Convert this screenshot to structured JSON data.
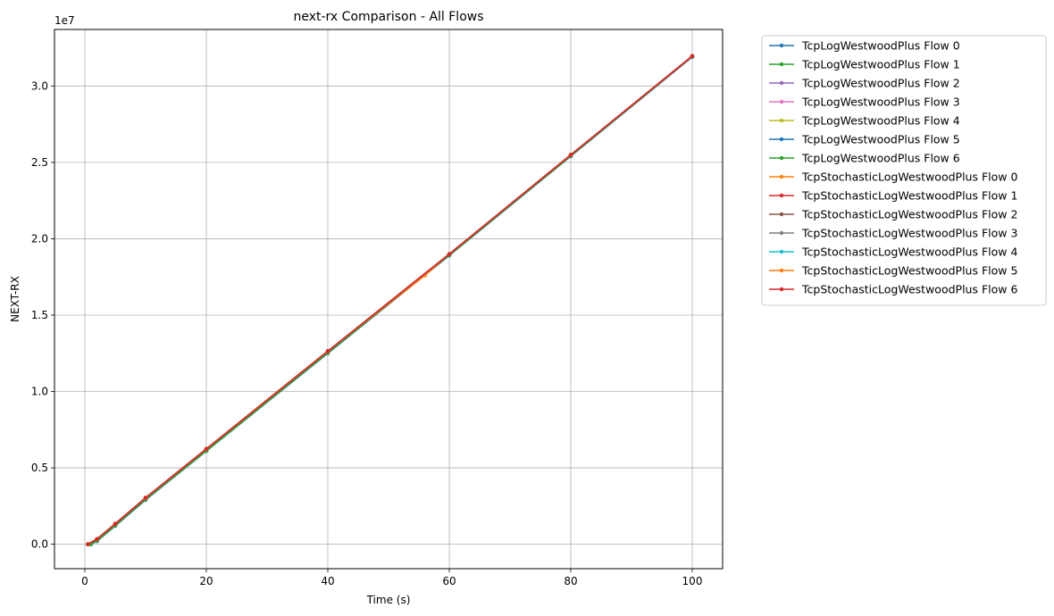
{
  "chart_data": {
    "type": "line",
    "title": "next-rx Comparison - All Flows",
    "xlabel": "Time (s)",
    "ylabel": "NEXT-RX",
    "y_multiplier_label": "1e7",
    "xlim": [
      -5,
      105
    ],
    "ylim": [
      -1600000.0,
      33700000.0
    ],
    "x_ticks": [
      0,
      20,
      40,
      60,
      80,
      100
    ],
    "x_tick_labels": [
      "0",
      "20",
      "40",
      "60",
      "80",
      "100"
    ],
    "y_ticks": [
      0,
      5000000,
      10000000,
      15000000,
      20000000,
      25000000,
      30000000
    ],
    "y_tick_labels": [
      "0.0",
      "0.5",
      "1.0",
      "1.5",
      "2.0",
      "2.5",
      "3.0"
    ],
    "grid": true,
    "legend_position": "outside-right",
    "series": [
      {
        "name": "TcpLogWestwoodPlus Flow 0",
        "color": "#1f77b4",
        "x": [
          1,
          2,
          5,
          10,
          20,
          40,
          60,
          80,
          100
        ],
        "y": [
          0,
          200000,
          1200000,
          2900000,
          6100000,
          12500000,
          18900000,
          25400000,
          31900000
        ]
      },
      {
        "name": "TcpLogWestwoodPlus Flow 1",
        "color": "#2ca02c",
        "x": [
          1,
          2,
          5,
          10,
          20,
          40,
          60,
          80,
          100
        ],
        "y": [
          0,
          220000,
          1220000,
          2930000,
          6120000,
          12520000,
          18920000,
          25420000,
          31920000
        ]
      },
      {
        "name": "TcpLogWestwoodPlus Flow 2",
        "color": "#9467bd",
        "x": [
          1,
          2,
          5,
          10,
          20,
          40,
          60,
          80,
          100
        ],
        "y": [
          0,
          210000,
          1210000,
          2910000,
          6110000,
          12510000,
          18910000,
          25410000,
          31910000
        ]
      },
      {
        "name": "TcpLogWestwoodPlus Flow 3",
        "color": "#e377c2",
        "x": [
          1,
          2,
          5,
          10,
          20,
          40,
          60,
          80,
          100
        ],
        "y": [
          0,
          230000,
          1230000,
          2940000,
          6130000,
          12530000,
          18930000,
          25430000,
          31930000
        ]
      },
      {
        "name": "TcpLogWestwoodPlus Flow 4",
        "color": "#bcbd22",
        "x": [
          1,
          2,
          5,
          10,
          20,
          40,
          60,
          80,
          100
        ],
        "y": [
          0,
          240000,
          1240000,
          2950000,
          6140000,
          12540000,
          18940000,
          25440000,
          31940000
        ]
      },
      {
        "name": "TcpLogWestwoodPlus Flow 5",
        "color": "#1f77b4",
        "x": [
          1,
          2,
          5,
          10,
          20,
          40,
          60,
          80,
          100
        ],
        "y": [
          0,
          215000,
          1215000,
          2920000,
          6115000,
          12515000,
          18915000,
          25415000,
          31915000
        ]
      },
      {
        "name": "TcpLogWestwoodPlus Flow 6",
        "color": "#2ca02c",
        "x": [
          1,
          2,
          5,
          10,
          20,
          40,
          60,
          80,
          100
        ],
        "y": [
          0,
          225000,
          1225000,
          2935000,
          6125000,
          12525000,
          18925000,
          25425000,
          31925000
        ]
      },
      {
        "name": "TcpStochasticLogWestwoodPlus Flow 0",
        "color": "#ff7f0e",
        "x": [
          0.5,
          2,
          5,
          10,
          20,
          40,
          56,
          60,
          80,
          100
        ],
        "y": [
          0,
          350000,
          1350000,
          3050000,
          6250000,
          12650000,
          17600000,
          19000000,
          25500000,
          31950000
        ]
      },
      {
        "name": "TcpStochasticLogWestwoodPlus Flow 1",
        "color": "#d62728",
        "x": [
          0.5,
          2,
          5,
          10,
          20,
          40,
          60,
          80,
          100
        ],
        "y": [
          0,
          340000,
          1340000,
          3040000,
          6240000,
          12640000,
          19000000,
          25490000,
          31960000
        ]
      },
      {
        "name": "TcpStochasticLogWestwoodPlus Flow 2",
        "color": "#8c564b",
        "x": [
          0.5,
          2,
          5,
          10,
          20,
          40,
          60,
          80,
          100
        ],
        "y": [
          0,
          330000,
          1330000,
          3030000,
          6230000,
          12630000,
          18990000,
          25480000,
          31955000
        ]
      },
      {
        "name": "TcpStochasticLogWestwoodPlus Flow 3",
        "color": "#7f7f7f",
        "x": [
          0.5,
          2,
          5,
          10,
          20,
          40,
          60,
          80,
          100
        ],
        "y": [
          0,
          320000,
          1320000,
          3020000,
          6220000,
          12620000,
          18980000,
          25470000,
          31945000
        ]
      },
      {
        "name": "TcpStochasticLogWestwoodPlus Flow 4",
        "color": "#17becf",
        "x": [
          0.5,
          2,
          5,
          10,
          20,
          40,
          60,
          80,
          100
        ],
        "y": [
          0,
          345000,
          1345000,
          3045000,
          6245000,
          12645000,
          19005000,
          25495000,
          31965000
        ]
      },
      {
        "name": "TcpStochasticLogWestwoodPlus Flow 5",
        "color": "#ff7f0e",
        "x": [
          0.5,
          2,
          5,
          10,
          20,
          40,
          60,
          80,
          100
        ],
        "y": [
          0,
          335000,
          1335000,
          3035000,
          6235000,
          12635000,
          18995000,
          25485000,
          31960000
        ]
      },
      {
        "name": "TcpStochasticLogWestwoodPlus Flow 6",
        "color": "#d62728",
        "x": [
          0.5,
          2,
          5,
          10,
          20,
          40,
          60,
          80,
          100
        ],
        "y": [
          0,
          340000,
          1340000,
          3040000,
          6240000,
          12640000,
          19000000,
          25490000,
          31960000
        ]
      }
    ]
  }
}
